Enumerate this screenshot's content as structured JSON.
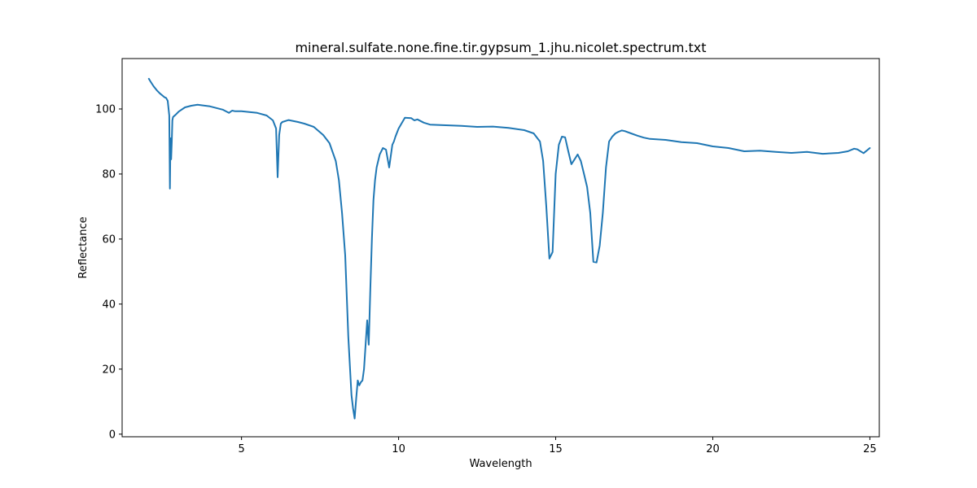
{
  "chart_data": {
    "type": "line",
    "title": "mineral.sulfate.none.fine.tir.gypsum_1.jhu.nicolet.spectrum.txt",
    "xlabel": "Wavelength",
    "ylabel": "Reflectance",
    "xlim": [
      1.2,
      25.3
    ],
    "ylim": [
      -0.8,
      115.5
    ],
    "x_ticks": [
      5,
      10,
      15,
      20,
      25
    ],
    "y_ticks": [
      0,
      20,
      40,
      60,
      80,
      100
    ],
    "x_tick_labels": [
      "5",
      "10",
      "15",
      "20",
      "25"
    ],
    "y_tick_labels": [
      "0",
      "20",
      "40",
      "60",
      "80",
      "100"
    ],
    "grid": false,
    "legend": "none",
    "series": [
      {
        "color": "#1f77b4",
        "x": [
          2.05,
          2.1,
          2.2,
          2.3,
          2.4,
          2.5,
          2.55,
          2.6,
          2.65,
          2.7,
          2.72,
          2.74,
          2.76,
          2.78,
          2.8,
          2.82,
          2.85,
          2.9,
          3.0,
          3.2,
          3.4,
          3.6,
          4.0,
          4.4,
          4.6,
          4.7,
          4.8,
          5.0,
          5.5,
          5.8,
          6.0,
          6.1,
          6.15,
          6.2,
          6.25,
          6.3,
          6.5,
          6.8,
          7.0,
          7.3,
          7.6,
          7.8,
          8.0,
          8.1,
          8.2,
          8.3,
          8.4,
          8.5,
          8.55,
          8.6,
          8.65,
          8.7,
          8.75,
          8.8,
          8.85,
          8.9,
          9.0,
          9.05,
          9.1,
          9.15,
          9.2,
          9.25,
          9.3,
          9.4,
          9.5,
          9.6,
          9.7,
          9.8,
          9.85,
          9.9,
          10.0,
          10.2,
          10.4,
          10.5,
          10.6,
          10.8,
          11.0,
          11.5,
          12.0,
          12.5,
          13.0,
          13.5,
          14.0,
          14.3,
          14.5,
          14.6,
          14.7,
          14.8,
          14.9,
          15.0,
          15.1,
          15.2,
          15.3,
          15.4,
          15.5,
          15.6,
          15.7,
          15.8,
          15.9,
          16.0,
          16.1,
          16.2,
          16.3,
          16.4,
          16.5,
          16.6,
          16.7,
          16.8,
          16.9,
          17.0,
          17.1,
          17.2,
          17.4,
          17.6,
          17.8,
          18.0,
          18.5,
          19.0,
          19.5,
          20.0,
          20.5,
          21.0,
          21.5,
          22.0,
          22.5,
          23.0,
          23.5,
          24.0,
          24.3,
          24.5,
          24.6,
          24.8,
          25.0
        ],
        "y": [
          109.3,
          108.5,
          107.0,
          105.8,
          104.8,
          104.0,
          103.6,
          103.4,
          102.5,
          98.0,
          75.5,
          91.0,
          84.5,
          90.0,
          96.5,
          97.5,
          97.8,
          98.2,
          99.2,
          100.5,
          101.0,
          101.3,
          100.8,
          99.8,
          98.8,
          99.5,
          99.3,
          99.3,
          98.8,
          98.0,
          96.5,
          94.0,
          79.0,
          92.0,
          95.5,
          96.0,
          96.6,
          96.0,
          95.5,
          94.5,
          92.0,
          89.5,
          84.0,
          78.0,
          68.0,
          55.0,
          30.0,
          12.0,
          8.0,
          4.8,
          11.0,
          16.5,
          15.0,
          16.0,
          16.5,
          20.0,
          35.0,
          27.5,
          45.0,
          60.0,
          72.0,
          78.0,
          82.0,
          86.0,
          88.0,
          87.5,
          82.0,
          89.0,
          90.0,
          91.5,
          94.0,
          97.3,
          97.2,
          96.5,
          96.8,
          95.8,
          95.2,
          95.0,
          94.8,
          94.5,
          94.6,
          94.2,
          93.5,
          92.5,
          90.0,
          84.0,
          70.0,
          54.0,
          56.0,
          80.0,
          89.0,
          91.5,
          91.3,
          87.0,
          83.0,
          84.5,
          86.0,
          84.0,
          80.0,
          76.0,
          68.0,
          53.0,
          52.8,
          58.0,
          68.0,
          82.0,
          90.0,
          91.5,
          92.5,
          93.0,
          93.4,
          93.2,
          92.5,
          91.8,
          91.2,
          90.8,
          90.5,
          89.8,
          89.5,
          88.5,
          88.0,
          87.0,
          87.2,
          86.8,
          86.5,
          86.8,
          86.2,
          86.5,
          87.0,
          87.8,
          87.6,
          86.4,
          88.0
        ]
      }
    ]
  }
}
